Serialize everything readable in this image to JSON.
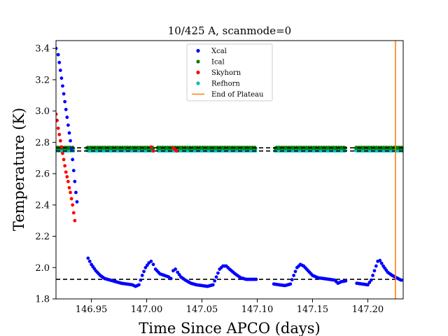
{
  "chart_data": {
    "type": "scatter",
    "title": "10/425 A, scanmode=0",
    "xlabel": "Time Since APCO (days)",
    "ylabel": "Temperature (K)",
    "xlim": [
      146.918,
      147.232
    ],
    "ylim": [
      1.8,
      3.45
    ],
    "x_ticks": [
      146.95,
      147.0,
      147.05,
      147.1,
      147.15,
      147.2
    ],
    "x_tick_labels": [
      "146.95",
      "147.00",
      "147.05",
      "147.10",
      "147.15",
      "147.20"
    ],
    "y_ticks": [
      1.8,
      2.0,
      2.2,
      2.4,
      2.6,
      2.8,
      3.0,
      3.2,
      3.4
    ],
    "y_tick_labels": [
      "1.8",
      "2.0",
      "2.2",
      "2.4",
      "2.6",
      "2.8",
      "3.0",
      "3.2",
      "3.4"
    ],
    "grid": false,
    "legend_position": "top-center",
    "legend": [
      {
        "label": "Xcal",
        "marker": "dot",
        "color": "#0000ff"
      },
      {
        "label": "Ical",
        "marker": "dot",
        "color": "#008000"
      },
      {
        "label": "Skyhorn",
        "marker": "dot",
        "color": "#ff0000"
      },
      {
        "label": "Refhorn",
        "marker": "dot",
        "color": "#00bfbf"
      },
      {
        "label": "End of Plateau",
        "marker": "line",
        "color": "#ff7f0e"
      }
    ],
    "reference_lines": [
      {
        "type": "horizontal",
        "y": 2.765,
        "style": "dashed",
        "color": "#000000"
      },
      {
        "type": "horizontal",
        "y": 2.745,
        "style": "dashed",
        "color": "#000000"
      },
      {
        "type": "horizontal",
        "y": 1.925,
        "style": "dashed",
        "color": "#000000"
      },
      {
        "type": "vertical",
        "x": 147.225,
        "style": "solid",
        "color": "#ff7f0e",
        "series": "End of Plateau"
      }
    ],
    "series": [
      {
        "name": "Xcal",
        "color": "#0000ff",
        "points": [
          [
            146.918,
            3.4
          ],
          [
            146.92,
            3.36
          ],
          [
            146.921,
            3.31
          ],
          [
            146.922,
            3.26
          ],
          [
            146.923,
            3.21
          ],
          [
            146.924,
            3.16
          ],
          [
            146.925,
            3.11
          ],
          [
            146.926,
            3.06
          ],
          [
            146.927,
            3.01
          ],
          [
            146.928,
            2.96
          ],
          [
            146.929,
            2.91
          ],
          [
            146.93,
            2.86
          ],
          [
            146.931,
            2.81
          ],
          [
            146.932,
            2.76
          ],
          [
            146.933,
            2.69
          ],
          [
            146.934,
            2.62
          ],
          [
            146.935,
            2.55
          ],
          [
            146.936,
            2.48
          ],
          [
            146.937,
            2.42
          ],
          [
            146.947,
            2.06
          ],
          [
            146.95,
            2.02
          ],
          [
            146.954,
            1.98
          ],
          [
            146.958,
            1.95
          ],
          [
            146.962,
            1.93
          ],
          [
            146.967,
            1.92
          ],
          [
            146.972,
            1.91
          ],
          [
            146.977,
            1.9
          ],
          [
            146.982,
            1.895
          ],
          [
            146.987,
            1.89
          ],
          [
            146.99,
            1.88
          ],
          [
            146.993,
            1.89
          ],
          [
            146.996,
            1.95
          ],
          [
            146.999,
            2.0
          ],
          [
            147.002,
            2.03
          ],
          [
            147.004,
            2.04
          ],
          [
            147.006,
            2.02
          ],
          [
            147.008,
            1.99
          ],
          [
            147.012,
            1.96
          ],
          [
            147.016,
            1.95
          ],
          [
            147.02,
            1.94
          ],
          [
            147.022,
            1.93
          ],
          [
            147.024,
            1.98
          ],
          [
            147.026,
            1.99
          ],
          [
            147.028,
            1.97
          ],
          [
            147.031,
            1.94
          ],
          [
            147.035,
            1.92
          ],
          [
            147.04,
            1.9
          ],
          [
            147.045,
            1.89
          ],
          [
            147.05,
            1.885
          ],
          [
            147.055,
            1.88
          ],
          [
            147.06,
            1.89
          ],
          [
            147.063,
            1.94
          ],
          [
            147.066,
            1.99
          ],
          [
            147.069,
            2.01
          ],
          [
            147.072,
            2.01
          ],
          [
            147.075,
            1.99
          ],
          [
            147.08,
            1.96
          ],
          [
            147.085,
            1.935
          ],
          [
            147.09,
            1.925
          ],
          [
            147.095,
            1.925
          ],
          [
            147.099,
            1.925
          ],
          [
            147.115,
            1.895
          ],
          [
            147.12,
            1.89
          ],
          [
            147.125,
            1.885
          ],
          [
            147.13,
            1.895
          ],
          [
            147.133,
            1.95
          ],
          [
            147.136,
            2.0
          ],
          [
            147.139,
            2.02
          ],
          [
            147.142,
            2.01
          ],
          [
            147.146,
            1.98
          ],
          [
            147.15,
            1.95
          ],
          [
            147.155,
            1.935
          ],
          [
            147.16,
            1.93
          ],
          [
            147.165,
            1.925
          ],
          [
            147.17,
            1.92
          ],
          [
            147.173,
            1.9
          ],
          [
            147.176,
            1.91
          ],
          [
            147.18,
            1.915
          ],
          [
            147.19,
            1.9
          ],
          [
            147.195,
            1.895
          ],
          [
            147.2,
            1.89
          ],
          [
            147.203,
            1.92
          ],
          [
            147.206,
            1.98
          ],
          [
            147.209,
            2.04
          ],
          [
            147.211,
            2.045
          ],
          [
            147.214,
            2.01
          ],
          [
            147.218,
            1.97
          ],
          [
            147.222,
            1.95
          ],
          [
            147.226,
            1.935
          ],
          [
            147.23,
            1.92
          ],
          [
            147.232,
            1.92
          ]
        ]
      },
      {
        "name": "Ical",
        "color": "#008000",
        "segments": [
          {
            "x_start": 146.918,
            "x_end": 146.934,
            "y": 2.765
          },
          {
            "x_start": 146.946,
            "x_end": 147.006,
            "y": 2.765
          },
          {
            "x_start": 147.01,
            "x_end": 147.099,
            "y": 2.765
          },
          {
            "x_start": 147.116,
            "x_end": 147.18,
            "y": 2.765
          },
          {
            "x_start": 147.189,
            "x_end": 147.232,
            "y": 2.765
          }
        ]
      },
      {
        "name": "Skyhorn",
        "color": "#ff0000",
        "points": [
          [
            146.918,
            2.98
          ],
          [
            146.919,
            2.94
          ],
          [
            146.92,
            2.89
          ],
          [
            146.921,
            2.85
          ],
          [
            146.922,
            2.81
          ],
          [
            146.923,
            2.77
          ],
          [
            146.924,
            2.73
          ],
          [
            146.925,
            2.69
          ],
          [
            146.926,
            2.65
          ],
          [
            146.927,
            2.61
          ],
          [
            146.928,
            2.58
          ],
          [
            146.929,
            2.55
          ],
          [
            146.93,
            2.51
          ],
          [
            146.931,
            2.48
          ],
          [
            146.932,
            2.44
          ],
          [
            146.933,
            2.4
          ],
          [
            146.934,
            2.35
          ],
          [
            146.935,
            2.3
          ],
          [
            147.004,
            2.77
          ],
          [
            147.006,
            2.745
          ],
          [
            147.024,
            2.765
          ],
          [
            147.027,
            2.745
          ]
        ]
      },
      {
        "name": "Refhorn",
        "color": "#00bfbf",
        "segments": [
          {
            "x_start": 146.918,
            "x_end": 146.934,
            "y": 2.748
          },
          {
            "x_start": 146.946,
            "x_end": 147.006,
            "y": 2.748
          },
          {
            "x_start": 147.01,
            "x_end": 147.099,
            "y": 2.748
          },
          {
            "x_start": 147.116,
            "x_end": 147.18,
            "y": 2.748
          },
          {
            "x_start": 147.189,
            "x_end": 147.232,
            "y": 2.748
          }
        ]
      }
    ]
  }
}
